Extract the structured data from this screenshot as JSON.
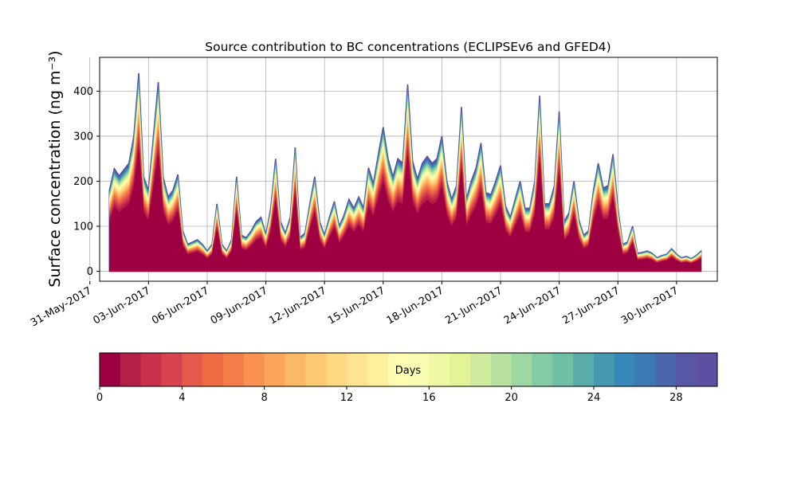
{
  "chart_data": [
    {
      "type": "area",
      "title": "Source contribution to BC concentrations (ECLIPSEv6 and GFED4)",
      "ylabel": "Surface concentration (ng m⁻³)",
      "xlabel": "",
      "grid": true,
      "stacked": true,
      "x_start": "2017-06-01",
      "x_end": "2017-07-01",
      "xlim": [
        "2017-05-31T12:00",
        "2017-07-02T02:00"
      ],
      "ylim": [
        -22,
        475
      ],
      "x_ticks": [
        "31-May-2017",
        "03-Jun-2017",
        "06-Jun-2017",
        "09-Jun-2017",
        "12-Jun-2017",
        "15-Jun-2017",
        "18-Jun-2017",
        "21-Jun-2017",
        "24-Jun-2017",
        "27-Jun-2017",
        "30-Jun-2017"
      ],
      "y_ticks": [
        0,
        100,
        200,
        300,
        400
      ],
      "series_by": "days",
      "series_count": 30,
      "total_concentration": {
        "x": [
          "2017-06-01T00:00",
          "2017-06-01T06:00",
          "2017-06-01T12:00",
          "2017-06-01T18:00",
          "2017-06-02T00:00",
          "2017-06-02T06:00",
          "2017-06-02T12:00",
          "2017-06-02T18:00",
          "2017-06-03T00:00",
          "2017-06-03T06:00",
          "2017-06-03T12:00",
          "2017-06-03T18:00",
          "2017-06-04T00:00",
          "2017-06-04T06:00",
          "2017-06-04T12:00",
          "2017-06-04T18:00",
          "2017-06-05T00:00",
          "2017-06-05T06:00",
          "2017-06-05T12:00",
          "2017-06-05T18:00",
          "2017-06-06T00:00",
          "2017-06-06T06:00",
          "2017-06-06T12:00",
          "2017-06-06T18:00",
          "2017-06-07T00:00",
          "2017-06-07T06:00",
          "2017-06-07T12:00",
          "2017-06-07T18:00",
          "2017-06-08T00:00",
          "2017-06-08T06:00",
          "2017-06-08T12:00",
          "2017-06-08T18:00",
          "2017-06-09T00:00",
          "2017-06-09T06:00",
          "2017-06-09T12:00",
          "2017-06-09T18:00",
          "2017-06-10T00:00",
          "2017-06-10T06:00",
          "2017-06-10T12:00",
          "2017-06-10T18:00",
          "2017-06-11T00:00",
          "2017-06-11T06:00",
          "2017-06-11T12:00",
          "2017-06-11T18:00",
          "2017-06-12T00:00",
          "2017-06-12T06:00",
          "2017-06-12T12:00",
          "2017-06-12T18:00",
          "2017-06-13T00:00",
          "2017-06-13T06:00",
          "2017-06-13T12:00",
          "2017-06-13T18:00",
          "2017-06-14T00:00",
          "2017-06-14T06:00",
          "2017-06-14T12:00",
          "2017-06-14T18:00",
          "2017-06-15T00:00",
          "2017-06-15T06:00",
          "2017-06-15T12:00",
          "2017-06-15T18:00",
          "2017-06-16T00:00",
          "2017-06-16T06:00",
          "2017-06-16T12:00",
          "2017-06-16T18:00",
          "2017-06-17T00:00",
          "2017-06-17T06:00",
          "2017-06-17T12:00",
          "2017-06-17T18:00",
          "2017-06-18T00:00",
          "2017-06-18T06:00",
          "2017-06-18T12:00",
          "2017-06-18T18:00",
          "2017-06-19T00:00",
          "2017-06-19T06:00",
          "2017-06-19T12:00",
          "2017-06-19T18:00",
          "2017-06-20T00:00",
          "2017-06-20T06:00",
          "2017-06-20T12:00",
          "2017-06-20T18:00",
          "2017-06-21T00:00",
          "2017-06-21T06:00",
          "2017-06-21T12:00",
          "2017-06-21T18:00",
          "2017-06-22T00:00",
          "2017-06-22T06:00",
          "2017-06-22T12:00",
          "2017-06-22T18:00",
          "2017-06-23T00:00",
          "2017-06-23T06:00",
          "2017-06-23T12:00",
          "2017-06-23T18:00",
          "2017-06-24T00:00",
          "2017-06-24T06:00",
          "2017-06-24T12:00",
          "2017-06-24T18:00",
          "2017-06-25T00:00",
          "2017-06-25T06:00",
          "2017-06-25T12:00",
          "2017-06-25T18:00",
          "2017-06-26T00:00",
          "2017-06-26T06:00",
          "2017-06-26T12:00",
          "2017-06-26T18:00",
          "2017-06-27T00:00",
          "2017-06-27T06:00",
          "2017-06-27T12:00",
          "2017-06-27T18:00",
          "2017-06-28T00:00",
          "2017-06-28T06:00",
          "2017-06-28T12:00",
          "2017-06-28T18:00",
          "2017-06-29T00:00",
          "2017-06-29T06:00",
          "2017-06-29T12:00",
          "2017-06-29T18:00",
          "2017-06-30T00:00",
          "2017-06-30T06:00",
          "2017-06-30T12:00",
          "2017-06-30T18:00",
          "2017-07-01T00:00",
          "2017-07-01T06:00"
        ],
        "values": [
          180,
          228,
          212,
          226,
          240,
          300,
          440,
          210,
          180,
          300,
          420,
          210,
          165,
          180,
          215,
          90,
          60,
          65,
          70,
          60,
          45,
          60,
          150,
          60,
          45,
          70,
          210,
          80,
          75,
          90,
          110,
          120,
          82,
          140,
          250,
          110,
          85,
          120,
          275,
          75,
          85,
          150,
          210,
          110,
          80,
          120,
          155,
          100,
          125,
          160,
          140,
          165,
          140,
          230,
          195,
          260,
          320,
          250,
          210,
          250,
          240,
          415,
          245,
          205,
          240,
          255,
          240,
          250,
          300,
          200,
          160,
          190,
          365,
          160,
          200,
          230,
          285,
          175,
          170,
          200,
          235,
          145,
          120,
          160,
          200,
          140,
          140,
          200,
          390,
          150,
          150,
          190,
          355,
          110,
          130,
          200,
          115,
          80,
          90,
          180,
          240,
          185,
          190,
          260,
          140,
          60,
          65,
          100,
          40,
          42,
          45,
          40,
          30,
          35,
          38,
          50,
          38,
          30,
          33,
          28,
          35,
          45
        ]
      },
      "colorbar": {
        "label": "Days",
        "min": 0,
        "max": 30,
        "n_colors": 30,
        "ticks": [
          0,
          4,
          8,
          12,
          16,
          20,
          24,
          28
        ],
        "colormap": "Spectral",
        "colors": [
          "#9e0142",
          "#b41f48",
          "#c8304c",
          "#d8434f",
          "#e55a4a",
          "#ee6b44",
          "#f57d4a",
          "#f99153",
          "#fba65c",
          "#fdb866",
          "#fdca73",
          "#fed882",
          "#fee491",
          "#fff09e",
          "#fffbb1",
          "#f8fcb3",
          "#eef8a5",
          "#e2f398",
          "#cfeb9d",
          "#b8e1a1",
          "#9ed6a4",
          "#82cba5",
          "#6fc0a5",
          "#5aadaa",
          "#4799b0",
          "#3787bb",
          "#3c79b5",
          "#4a67ae",
          "#5756a7",
          "#5e4fa2"
        ]
      }
    }
  ]
}
